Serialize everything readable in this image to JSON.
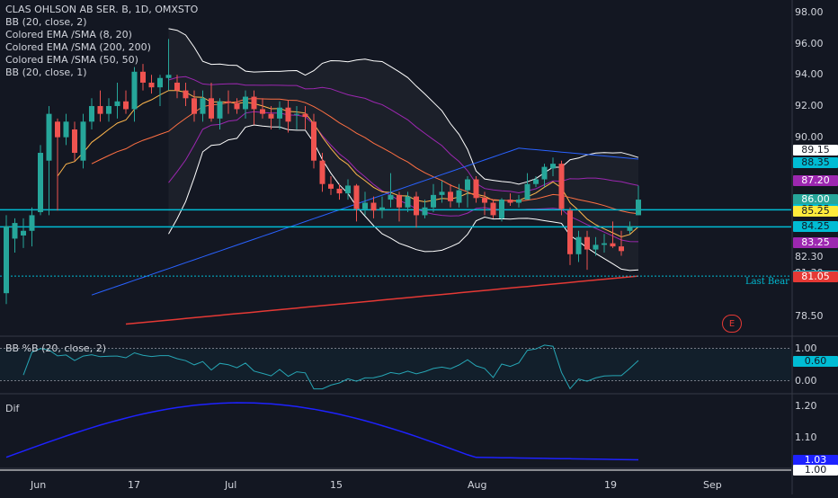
{
  "legend": {
    "title": "CLAS OHLSON AB SER. B, 1D, OMXSTO",
    "lines": [
      "BB (20, close, 2)",
      "Colored EMA /SMA (8, 20)",
      "Colored EMA /SMA (200, 200)",
      "Colored EMA /SMA (50, 50)",
      "BB (20, close, 1)"
    ]
  },
  "panes": {
    "bbpb_title": "BB %B (20, close, 2)",
    "dif_title": "Dif",
    "annotation": "Last Bear",
    "event_badge": "E"
  },
  "axes": {
    "price_ticks": [
      "98.00",
      "96.00",
      "94.00",
      "92.00",
      "90.00",
      "78.50"
    ],
    "price_tick_values": [
      98,
      96,
      94,
      92,
      90,
      78.5
    ],
    "extra_labels": [
      {
        "text": "82.30",
        "value": 82.3
      },
      {
        "text": "81.30",
        "value": 81.3
      }
    ],
    "bbpb_ticks": [
      "1.00",
      "0.00"
    ],
    "bbpb_tick_values": [
      1.0,
      0.0
    ],
    "dif_ticks": [
      "1.20",
      "1.10"
    ],
    "dif_tick_values": [
      1.2,
      1.1
    ],
    "dates": [
      "Jun",
      "17",
      "Jul",
      "15",
      "Aug",
      "19",
      "Sep"
    ]
  },
  "price_tags": [
    {
      "text": "89.15",
      "value": 89.15,
      "bg": "#ffffff",
      "fg": "#131722"
    },
    {
      "text": "88.35",
      "value": 88.35,
      "bg": "#00bcd4",
      "fg": "#131722"
    },
    {
      "text": "87.20",
      "value": 87.2,
      "bg": "#9c27b0",
      "fg": "#ffffff"
    },
    {
      "text": "86.00",
      "value": 86.0,
      "bg": "#26a69a",
      "fg": "#ffffff"
    },
    {
      "text": "85.35",
      "value": 85.35,
      "bg": "#00bcd4",
      "fg": "#131722"
    },
    {
      "text": "85.25",
      "value": 85.25,
      "bg": "#ffeb3b",
      "fg": "#131722"
    },
    {
      "text": "84.25",
      "value": 84.25,
      "bg": "#00bcd4",
      "fg": "#131722"
    },
    {
      "text": "83.25",
      "value": 83.25,
      "bg": "#9c27b0",
      "fg": "#ffffff"
    },
    {
      "text": "81.10",
      "value": 81.1,
      "bg": "#00bcd4",
      "fg": "#131722"
    },
    {
      "text": "81.05",
      "value": 81.05,
      "bg": "#e53935",
      "fg": "#ffffff"
    }
  ],
  "bbpb_tags": [
    {
      "text": "0.60",
      "value": 0.6,
      "bg": "#00bcd4",
      "fg": "#131722"
    }
  ],
  "dif_tags": [
    {
      "text": "1.03",
      "value": 1.03,
      "bg": "#1e22ff",
      "fg": "#ffffff"
    },
    {
      "text": "1.00",
      "value": 1.0,
      "bg": "#ffffff",
      "fg": "#131722"
    }
  ],
  "colors": {
    "background": "#131722",
    "up": "#26a69a",
    "down": "#ef5350",
    "bb2": "#ffffff",
    "bb1": "#9c27b0",
    "ema8": "#ffb74d",
    "sma20": "#ff7043",
    "ema200": "#e53935",
    "ema50": "#2962ff",
    "cyan": "#00bcd4",
    "dif": "#1e22ff"
  },
  "chart_data": {
    "type": "candlestick",
    "title": "CLAS OHLSON AB SER. B, 1D, OMXSTO",
    "ylim": [
      77.3,
      98.8
    ],
    "horizontal_lines": [
      85.35,
      84.25,
      81.1
    ],
    "candles": [
      {
        "o": 80.0,
        "h": 85.0,
        "l": 79.3,
        "c": 84.3
      },
      {
        "o": 83.5,
        "h": 84.8,
        "l": 82.6,
        "c": 84.5
      },
      {
        "o": 83.7,
        "h": 84.8,
        "l": 82.9,
        "c": 84.0
      },
      {
        "o": 84.0,
        "h": 85.5,
        "l": 83.0,
        "c": 85.0
      },
      {
        "o": 85.2,
        "h": 89.5,
        "l": 85.0,
        "c": 89.0
      },
      {
        "o": 88.5,
        "h": 92.0,
        "l": 85.0,
        "c": 91.5
      },
      {
        "o": 91.0,
        "h": 91.2,
        "l": 85.3,
        "c": 90.0
      },
      {
        "o": 90.0,
        "h": 91.5,
        "l": 89.5,
        "c": 91.0
      },
      {
        "o": 90.5,
        "h": 91.0,
        "l": 88.5,
        "c": 89.0
      },
      {
        "o": 88.5,
        "h": 91.5,
        "l": 88.0,
        "c": 91.0
      },
      {
        "o": 91.0,
        "h": 92.5,
        "l": 90.5,
        "c": 92.0
      },
      {
        "o": 92.0,
        "h": 93.0,
        "l": 91.0,
        "c": 91.5
      },
      {
        "o": 91.5,
        "h": 92.5,
        "l": 91.0,
        "c": 92.0
      },
      {
        "o": 92.0,
        "h": 93.5,
        "l": 91.2,
        "c": 92.3
      },
      {
        "o": 92.3,
        "h": 93.0,
        "l": 91.5,
        "c": 91.8
      },
      {
        "o": 91.8,
        "h": 94.5,
        "l": 91.0,
        "c": 94.2
      },
      {
        "o": 94.2,
        "h": 94.7,
        "l": 93.0,
        "c": 93.5
      },
      {
        "o": 93.5,
        "h": 94.0,
        "l": 92.8,
        "c": 93.2
      },
      {
        "o": 93.2,
        "h": 94.0,
        "l": 92.0,
        "c": 93.8
      },
      {
        "o": 93.8,
        "h": 96.3,
        "l": 93.0,
        "c": 94.0
      },
      {
        "o": 93.5,
        "h": 94.0,
        "l": 92.5,
        "c": 93.0
      },
      {
        "o": 93.0,
        "h": 93.5,
        "l": 92.0,
        "c": 92.5
      },
      {
        "o": 92.5,
        "h": 93.0,
        "l": 91.0,
        "c": 91.5
      },
      {
        "o": 91.5,
        "h": 93.0,
        "l": 91.0,
        "c": 92.5
      },
      {
        "o": 92.5,
        "h": 93.5,
        "l": 91.0,
        "c": 91.2
      },
      {
        "o": 91.2,
        "h": 92.5,
        "l": 90.5,
        "c": 92.3
      },
      {
        "o": 92.3,
        "h": 93.0,
        "l": 91.5,
        "c": 92.2
      },
      {
        "o": 92.2,
        "h": 92.5,
        "l": 91.5,
        "c": 91.8
      },
      {
        "o": 91.8,
        "h": 93.0,
        "l": 91.2,
        "c": 92.6
      },
      {
        "o": 92.6,
        "h": 93.0,
        "l": 90.8,
        "c": 91.8
      },
      {
        "o": 91.8,
        "h": 92.5,
        "l": 91.2,
        "c": 91.5
      },
      {
        "o": 91.5,
        "h": 92.0,
        "l": 90.5,
        "c": 91.2
      },
      {
        "o": 91.2,
        "h": 92.3,
        "l": 90.5,
        "c": 91.9
      },
      {
        "o": 91.9,
        "h": 92.4,
        "l": 90.3,
        "c": 91.0
      },
      {
        "o": 91.5,
        "h": 92.0,
        "l": 90.5,
        "c": 91.5
      },
      {
        "o": 91.5,
        "h": 92.0,
        "l": 90.5,
        "c": 91.3
      },
      {
        "o": 91.0,
        "h": 91.5,
        "l": 88.0,
        "c": 88.5
      },
      {
        "o": 88.5,
        "h": 89.0,
        "l": 86.5,
        "c": 87.0
      },
      {
        "o": 87.0,
        "h": 87.5,
        "l": 86.3,
        "c": 86.7
      },
      {
        "o": 86.7,
        "h": 87.0,
        "l": 86.0,
        "c": 86.4
      },
      {
        "o": 86.4,
        "h": 87.3,
        "l": 86.0,
        "c": 86.9
      },
      {
        "o": 86.9,
        "h": 87.0,
        "l": 84.6,
        "c": 85.4
      },
      {
        "o": 85.4,
        "h": 86.5,
        "l": 85.0,
        "c": 85.8
      },
      {
        "o": 85.8,
        "h": 86.2,
        "l": 84.8,
        "c": 85.3
      },
      {
        "o": 85.3,
        "h": 86.2,
        "l": 84.8,
        "c": 85.5
      },
      {
        "o": 86.0,
        "h": 87.7,
        "l": 85.5,
        "c": 86.3
      },
      {
        "o": 86.3,
        "h": 86.5,
        "l": 84.6,
        "c": 85.5
      },
      {
        "o": 85.5,
        "h": 86.5,
        "l": 85.2,
        "c": 86.2
      },
      {
        "o": 86.2,
        "h": 86.5,
        "l": 84.2,
        "c": 85.0
      },
      {
        "o": 85.0,
        "h": 86.0,
        "l": 84.8,
        "c": 85.5
      },
      {
        "o": 85.5,
        "h": 87.0,
        "l": 85.2,
        "c": 86.3
      },
      {
        "o": 86.3,
        "h": 87.2,
        "l": 85.8,
        "c": 86.5
      },
      {
        "o": 86.5,
        "h": 87.0,
        "l": 85.5,
        "c": 85.9
      },
      {
        "o": 85.8,
        "h": 87.0,
        "l": 85.5,
        "c": 86.6
      },
      {
        "o": 86.6,
        "h": 87.5,
        "l": 85.5,
        "c": 87.3
      },
      {
        "o": 87.3,
        "h": 87.5,
        "l": 85.8,
        "c": 86.1
      },
      {
        "o": 86.1,
        "h": 86.5,
        "l": 85.0,
        "c": 85.8
      },
      {
        "o": 85.8,
        "h": 86.0,
        "l": 84.8,
        "c": 85.0
      },
      {
        "o": 84.8,
        "h": 86.1,
        "l": 84.6,
        "c": 86.0
      },
      {
        "o": 86.0,
        "h": 86.4,
        "l": 85.6,
        "c": 85.8
      },
      {
        "o": 85.8,
        "h": 86.3,
        "l": 85.5,
        "c": 86.0
      },
      {
        "o": 86.0,
        "h": 87.7,
        "l": 86.0,
        "c": 87.0
      },
      {
        "o": 87.0,
        "h": 87.5,
        "l": 86.8,
        "c": 87.3
      },
      {
        "o": 87.3,
        "h": 88.3,
        "l": 86.8,
        "c": 88.1
      },
      {
        "o": 88.0,
        "h": 88.7,
        "l": 87.5,
        "c": 88.3
      },
      {
        "o": 88.3,
        "h": 88.5,
        "l": 85.0,
        "c": 85.4
      },
      {
        "o": 85.3,
        "h": 85.5,
        "l": 81.8,
        "c": 82.5
      },
      {
        "o": 82.5,
        "h": 84.0,
        "l": 82.0,
        "c": 83.6
      },
      {
        "o": 83.6,
        "h": 84.0,
        "l": 81.5,
        "c": 82.8
      },
      {
        "o": 82.8,
        "h": 83.6,
        "l": 82.4,
        "c": 83.1
      },
      {
        "o": 83.1,
        "h": 83.8,
        "l": 82.6,
        "c": 83.2
      },
      {
        "o": 83.2,
        "h": 84.6,
        "l": 82.9,
        "c": 83.0
      },
      {
        "o": 83.0,
        "h": 84.0,
        "l": 82.4,
        "c": 82.7
      },
      {
        "o": 84.0,
        "h": 84.6,
        "l": 83.8,
        "c": 84.3
      },
      {
        "o": 85.0,
        "h": 86.9,
        "l": 85.0,
        "c": 86.0
      }
    ]
  }
}
